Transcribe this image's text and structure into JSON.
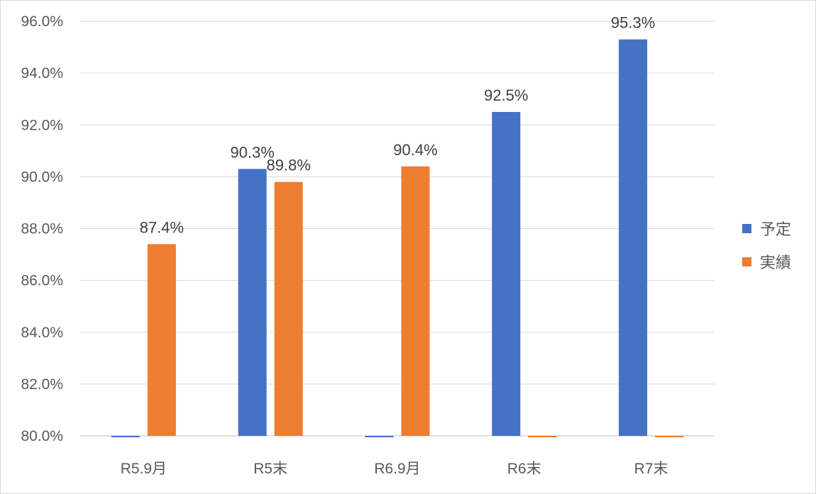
{
  "chart_data": {
    "type": "bar",
    "title": "",
    "xlabel": "",
    "ylabel": "",
    "ylim": [
      80,
      96
    ],
    "ytick_step": 2,
    "ytick_labels": [
      "80.0%",
      "82.0%",
      "84.0%",
      "86.0%",
      "88.0%",
      "90.0%",
      "92.0%",
      "94.0%",
      "96.0%"
    ],
    "categories": [
      "R5.9月",
      "R5末",
      "R6.9月",
      "R6末",
      "R7末"
    ],
    "series": [
      {
        "name": "予定",
        "color": "#4472c4",
        "values": [
          null,
          90.3,
          null,
          92.5,
          95.3
        ],
        "labels": [
          "",
          "90.3%",
          "",
          "92.5%",
          "95.3%"
        ]
      },
      {
        "name": "実績",
        "color": "#ed7d31",
        "values": [
          87.4,
          89.8,
          90.4,
          null,
          null
        ],
        "labels": [
          "87.4%",
          "89.8%",
          "90.4%",
          "",
          ""
        ]
      }
    ],
    "grid": true,
    "legend_position": "right"
  }
}
